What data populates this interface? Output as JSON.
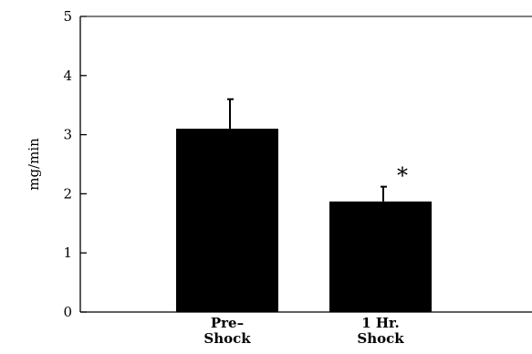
{
  "chart_data": {
    "type": "bar",
    "categories": [
      [
        "Pre–",
        "Shock"
      ],
      [
        "1 Hr.",
        "Shock"
      ]
    ],
    "values": [
      3.1,
      1.87
    ],
    "error_upper": [
      3.6,
      2.12
    ],
    "ylabel": "mg/min",
    "xlabel": "",
    "ylim": [
      0,
      5
    ],
    "yticks": [
      0,
      1,
      2,
      3,
      4,
      5
    ],
    "annotations": [
      {
        "category_index": 1,
        "text": "*"
      }
    ],
    "grid": false,
    "legend": "none",
    "bar_color": "#000000"
  }
}
